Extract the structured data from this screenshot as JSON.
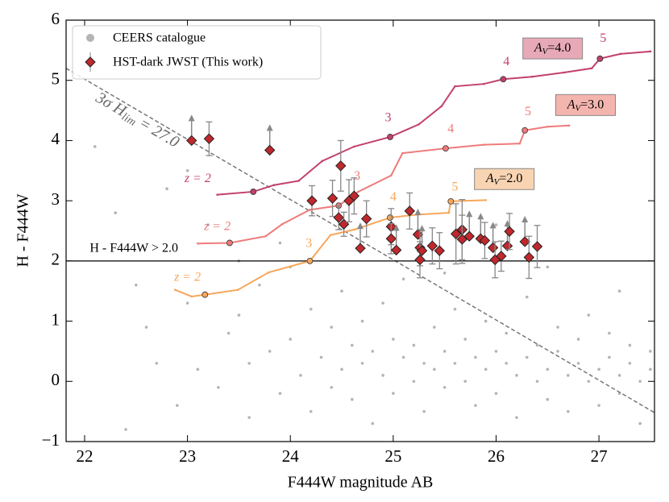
{
  "chart_data": {
    "type": "scatter",
    "xlabel": "F444W magnitude AB",
    "ylabel": "H - F444W",
    "xlim": [
      21.82,
      27.54
    ],
    "ylim": [
      -1,
      6
    ],
    "xticks": [
      22,
      23,
      24,
      25,
      26,
      27
    ],
    "yticks": [
      {
        "value": -1,
        "label": "−1"
      },
      0,
      1,
      2,
      3,
      4,
      5,
      6
    ],
    "legend": "upper left",
    "background": {
      "name": "CEERS catalogue",
      "color": "#b4b4b4",
      "x": [
        22.1,
        22.3,
        22.5,
        22.6,
        22.8,
        22.9,
        23.0,
        23.1,
        23.2,
        23.3,
        23.4,
        23.5,
        23.6,
        23.6,
        23.7,
        23.8,
        23.9,
        23.9,
        24.0,
        24.1,
        24.2,
        24.2,
        24.3,
        24.4,
        24.4,
        24.5,
        24.5,
        24.6,
        24.6,
        24.7,
        24.7,
        24.8,
        24.8,
        24.9,
        24.9,
        25.0,
        25.0,
        25.1,
        25.1,
        25.2,
        25.2,
        25.3,
        25.3,
        25.4,
        25.4,
        25.5,
        25.5,
        25.6,
        25.6,
        25.7,
        25.7,
        25.8,
        25.8,
        25.9,
        25.9,
        26.0,
        26.0,
        26.1,
        26.1,
        26.2,
        26.2,
        26.3,
        26.3,
        26.4,
        26.4,
        26.5,
        26.5,
        26.6,
        26.6,
        26.7,
        26.7,
        26.8,
        26.8,
        26.9,
        26.9,
        27.0,
        27.0,
        27.1,
        27.1,
        27.2,
        27.2,
        27.3,
        27.3,
        27.4,
        27.4,
        27.5,
        27.5,
        22.4,
        23.0,
        24.0,
        25.5,
        26.5,
        27.2,
        26.0,
        23.5,
        22.7
      ],
      "y": [
        3.9,
        2.8,
        1.6,
        0.9,
        3.2,
        -0.4,
        1.3,
        0.2,
        2.6,
        -0.1,
        0.8,
        1.1,
        0.3,
        -0.6,
        1.6,
        0.5,
        -0.2,
        2.3,
        0.7,
        0.1,
        1.2,
        -0.5,
        0.4,
        0.9,
        -0.1,
        1.5,
        0.2,
        0.6,
        -0.3,
        1.0,
        0.3,
        -0.7,
        0.5,
        1.3,
        0.1,
        0.7,
        -0.2,
        0.4,
        1.7,
        0.0,
        0.6,
        0.3,
        -0.5,
        0.9,
        0.2,
        0.5,
        -0.1,
        1.2,
        0.3,
        0.0,
        0.7,
        0.4,
        -0.4,
        0.2,
        1.0,
        0.5,
        -0.2,
        0.3,
        0.8,
        0.1,
        -0.6,
        0.4,
        1.4,
        0.0,
        0.6,
        0.2,
        -0.3,
        0.5,
        0.9,
        0.1,
        -0.5,
        0.3,
        0.7,
        0.0,
        1.1,
        0.2,
        -0.4,
        0.4,
        0.8,
        0.1,
        -0.2,
        0.3,
        0.6,
        0.0,
        -0.7,
        0.2,
        0.5,
        -0.8,
        3.5,
        1.9,
        1.8,
        1.9,
        1.5,
        2.6,
        2.0,
        0.3
      ]
    },
    "sample": {
      "name": "HST-dark JWST (This work)",
      "color": "#c0282d",
      "x": [
        23.04,
        23.21,
        23.8,
        24.21,
        24.41,
        24.49,
        24.47,
        24.52,
        24.57,
        24.62,
        24.74,
        24.68,
        24.98,
        24.98,
        25.03,
        25.16,
        25.24,
        25.26,
        25.26,
        25.28,
        25.38,
        25.45,
        25.61,
        25.67,
        25.67,
        25.74,
        25.85,
        25.89,
        25.97,
        25.99,
        26.05,
        26.11,
        26.13,
        26.28,
        26.32,
        26.4
      ],
      "y": [
        4.0,
        4.03,
        3.84,
        3.0,
        3.04,
        3.58,
        2.72,
        2.61,
        3.0,
        3.08,
        2.7,
        2.21,
        2.57,
        2.37,
        2.18,
        2.83,
        2.44,
        2.22,
        2.02,
        2.17,
        2.25,
        2.17,
        2.45,
        2.52,
        2.36,
        2.41,
        2.37,
        2.34,
        2.22,
        2.02,
        2.08,
        2.25,
        2.49,
        2.32,
        2.06,
        2.24
      ],
      "yerr": [
        null,
        0.28,
        null,
        0.25,
        0.3,
        0.42,
        0.2,
        0.2,
        0.35,
        0.3,
        0.3,
        null,
        0.3,
        0.25,
        null,
        0.3,
        null,
        0.3,
        0.3,
        null,
        0.3,
        0.3,
        0.5,
        0.5,
        0.4,
        null,
        null,
        0.3,
        null,
        0.3,
        0.25,
        null,
        0.3,
        null,
        0.35,
        0.35
      ],
      "lower_limit": [
        true,
        false,
        true,
        false,
        false,
        false,
        false,
        false,
        false,
        false,
        false,
        true,
        false,
        false,
        true,
        false,
        true,
        false,
        false,
        true,
        false,
        false,
        false,
        false,
        false,
        true,
        true,
        false,
        true,
        false,
        false,
        true,
        false,
        true,
        false,
        false
      ]
    },
    "tracks": [
      {
        "label": {
          "main": "A",
          "sub": "V",
          "rest": "=4.0"
        },
        "color": "#c2416b",
        "box_color": "#e8a9b6",
        "box": [
          26.55,
          5.53
        ],
        "x": [
          23.29,
          23.64,
          23.84,
          24.08,
          24.31,
          24.62,
          24.97,
          25.25,
          25.47,
          25.6,
          25.88,
          26.07,
          26.35,
          26.66,
          26.93,
          27.01,
          27.21,
          27.5
        ],
        "y": [
          3.1,
          3.15,
          3.26,
          3.33,
          3.66,
          3.9,
          4.06,
          4.27,
          4.57,
          4.9,
          4.94,
          5.02,
          5.06,
          5.13,
          5.2,
          5.36,
          5.44,
          5.48
        ],
        "z_markers": [
          1,
          6,
          11,
          15
        ],
        "z_labels": [
          {
            "text": "z = 2",
            "x": 23.1,
            "y": 3.36
          },
          {
            "text": "3",
            "x": 24.95,
            "y": 4.37
          },
          {
            "text": "4",
            "x": 26.1,
            "y": 5.3
          },
          {
            "text": "5",
            "x": 27.04,
            "y": 5.69
          }
        ]
      },
      {
        "label": {
          "main": "A",
          "sub": "V",
          "rest": "=3.0"
        },
        "color": "#ee7b7b",
        "box_color": "#f4b5ae",
        "box": [
          26.87,
          4.59
        ],
        "x": [
          23.1,
          23.41,
          23.76,
          23.92,
          24.19,
          24.47,
          24.66,
          24.98,
          25.09,
          25.51,
          25.88,
          26.23,
          26.28,
          26.5,
          26.71
        ],
        "y": [
          2.29,
          2.3,
          2.41,
          2.61,
          2.85,
          2.92,
          3.15,
          3.42,
          3.79,
          3.87,
          3.93,
          3.95,
          4.17,
          4.23,
          4.25
        ],
        "z_markers": [
          1,
          5,
          9,
          12
        ],
        "z_labels": [
          {
            "text": "z = 2",
            "x": 23.29,
            "y": 2.56
          },
          {
            "text": "3",
            "x": 24.65,
            "y": 3.4
          },
          {
            "text": "4",
            "x": 25.56,
            "y": 4.18
          },
          {
            "text": "5",
            "x": 26.31,
            "y": 4.47
          }
        ]
      },
      {
        "label": {
          "main": "A",
          "sub": "V",
          "rest": "=2.0"
        },
        "color": "#f7a65a",
        "box_color": "#f9d4b2",
        "box": [
          26.08,
          3.36
        ],
        "x": [
          22.88,
          23.04,
          23.17,
          23.49,
          23.79,
          24.19,
          24.39,
          24.62,
          24.97,
          25.23,
          25.54,
          25.56,
          25.9
        ],
        "y": [
          1.52,
          1.41,
          1.44,
          1.52,
          1.81,
          2.0,
          2.43,
          2.52,
          2.72,
          2.77,
          2.8,
          2.99,
          3.01
        ],
        "z_markers": [
          2,
          5,
          8,
          11
        ],
        "z_labels": [
          {
            "text": "z = 2",
            "x": 23.0,
            "y": 1.72
          },
          {
            "text": "3",
            "x": 24.18,
            "y": 2.28
          },
          {
            "text": "4",
            "x": 25.0,
            "y": 3.05
          },
          {
            "text": "5",
            "x": 25.6,
            "y": 3.22
          }
        ]
      }
    ],
    "threshold": {
      "y": 2.0,
      "label": "H - F444W > 2.0",
      "label_x": 22.05,
      "label_y": 2.2
    },
    "limit_line": {
      "x": [
        21.82,
        27.54
      ],
      "y": [
        5.2,
        -0.52
      ],
      "label": {
        "main": "3σ H",
        "sub": "lim",
        "rest": " = 27.0"
      },
      "label_at": [
        22.51,
        4.33
      ]
    }
  }
}
